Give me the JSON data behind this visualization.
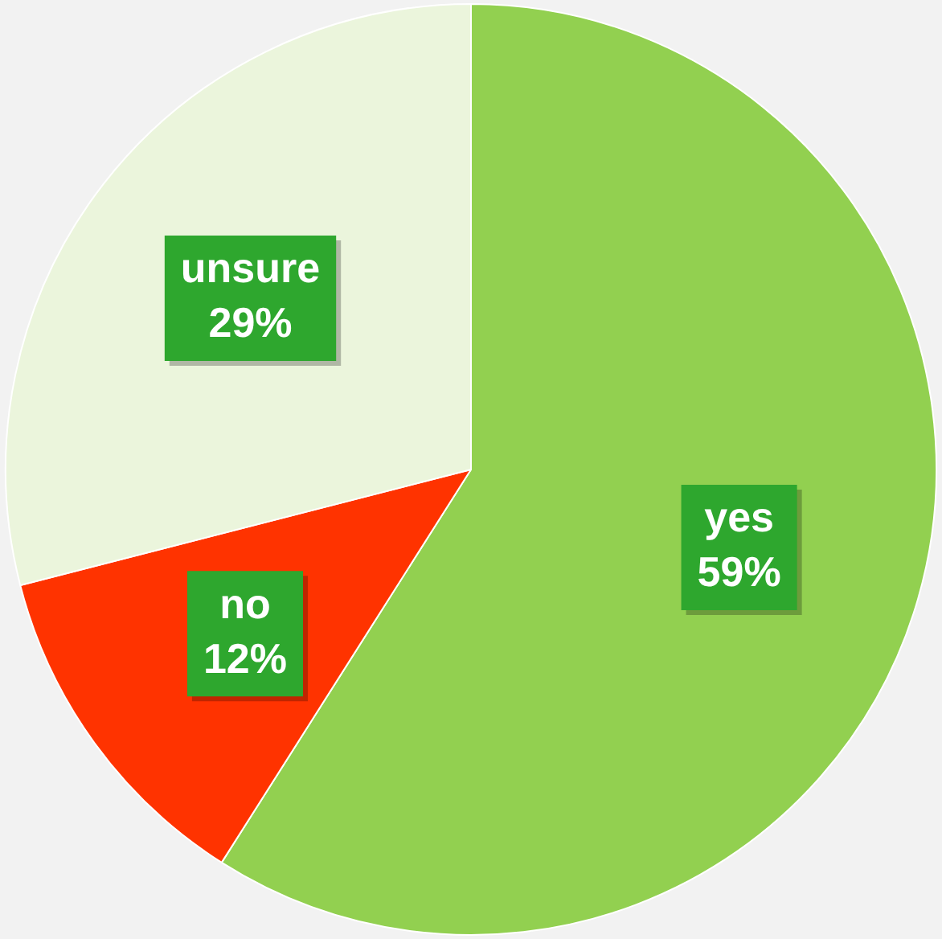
{
  "chart_data": {
    "type": "pie",
    "categories": [
      "yes",
      "no",
      "unsure"
    ],
    "values": [
      59,
      12,
      29
    ],
    "value_labels": [
      "59%",
      "12%",
      "29%"
    ],
    "colors": [
      "#92d050",
      "#ff3300",
      "#ebf5dc"
    ]
  }
}
